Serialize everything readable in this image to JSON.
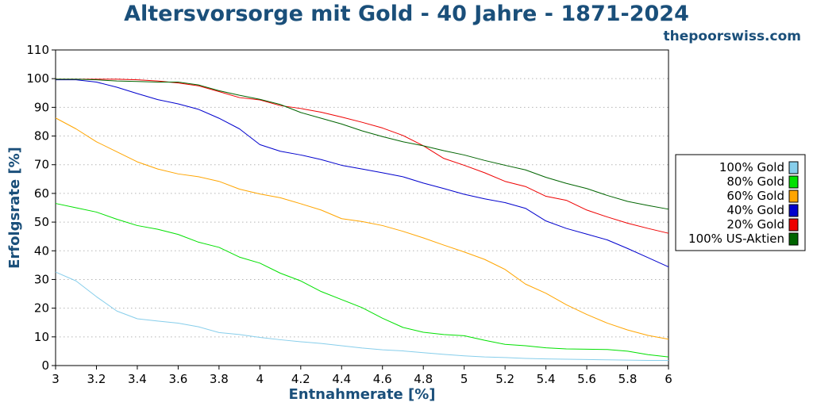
{
  "chart_data": {
    "type": "line",
    "title": "Altersvorsorge mit Gold - 40 Jahre - 1871-2024",
    "source_label": "thepoorswiss.com",
    "xlabel": "Entnahmerate [%]",
    "ylabel": "Erfolgsrate [%]",
    "xlim": [
      3,
      6
    ],
    "ylim": [
      0,
      110
    ],
    "xticks": [
      3,
      3.2,
      3.4,
      3.6,
      3.8,
      4,
      4.2,
      4.4,
      4.6,
      4.8,
      5,
      5.2,
      5.4,
      5.6,
      5.8,
      6
    ],
    "xtick_labels": [
      "3",
      "3.2",
      "3.4",
      "3.6",
      "3.8",
      "4",
      "4.2",
      "4.4",
      "4.6",
      "4.8",
      "5",
      "5.2",
      "5.4",
      "5.6",
      "5.8",
      "6"
    ],
    "yticks": [
      0,
      10,
      20,
      30,
      40,
      50,
      60,
      70,
      80,
      90,
      100,
      110
    ],
    "ytick_labels": [
      "0",
      "10",
      "20",
      "30",
      "40",
      "50",
      "60",
      "70",
      "80",
      "90",
      "100",
      "110"
    ],
    "grid": "horizontal-dotted",
    "legend_position": "right",
    "x": [
      3,
      3.1,
      3.2,
      3.3,
      3.4,
      3.5,
      3.6,
      3.7,
      3.8,
      3.9,
      4,
      4.1,
      4.2,
      4.3,
      4.4,
      4.5,
      4.6,
      4.7,
      4.8,
      4.9,
      5,
      5.1,
      5.2,
      5.3,
      5.4,
      5.5,
      5.6,
      5.7,
      5.8,
      5.9,
      6
    ],
    "series": [
      {
        "name": "100% Gold",
        "color": "#87ceeb",
        "values": [
          32.6,
          29.5,
          24,
          19,
          16.3,
          15.5,
          14.8,
          13.5,
          11.5,
          10.8,
          9.8,
          9,
          8.3,
          7.7,
          6.9,
          6.1,
          5.5,
          5.1,
          4.5,
          3.9,
          3.4,
          3,
          2.8,
          2.5,
          2.3,
          2.2,
          2.1,
          2,
          1.9,
          1.8,
          1.8
        ]
      },
      {
        "name": "80% Gold",
        "color": "#00e000",
        "values": [
          56.5,
          55,
          53.5,
          51,
          48.8,
          47.5,
          45.7,
          43,
          41.2,
          37.8,
          35.7,
          32.2,
          29.5,
          25.8,
          23,
          20.2,
          16.5,
          13.3,
          11.6,
          10.8,
          10.4,
          8.8,
          7.4,
          6.9,
          6.2,
          5.8,
          5.7,
          5.6,
          5,
          3.8,
          3
        ]
      },
      {
        "name": "60% Gold",
        "color": "#ffa500",
        "values": [
          86.3,
          82.5,
          78,
          74.5,
          71,
          68.5,
          66.8,
          65.8,
          64.2,
          61.5,
          59.8,
          58.5,
          56.4,
          54.2,
          51.2,
          50.2,
          48.8,
          46.8,
          44.5,
          42,
          39.6,
          37,
          33.5,
          28.4,
          25.2,
          21.2,
          17.8,
          14.8,
          12.4,
          10.5,
          9.2
        ]
      },
      {
        "name": "40% Gold",
        "color": "#0000cd",
        "values": [
          99.6,
          99.6,
          98.8,
          97,
          94.8,
          92.7,
          91.2,
          89.3,
          86.2,
          82.5,
          77,
          74.7,
          73.4,
          71.8,
          69.8,
          68.5,
          67.2,
          65.8,
          63.6,
          61.7,
          59.7,
          58.1,
          56.8,
          54.8,
          50.4,
          47.8,
          45.8,
          43.8,
          40.8,
          37.6,
          34.4
        ]
      },
      {
        "name": "20% Gold",
        "color": "#ee0000",
        "values": [
          99.8,
          99.8,
          99.8,
          99.8,
          99.6,
          99.2,
          98.5,
          97.5,
          95.5,
          93.4,
          92.6,
          90.6,
          89.6,
          88.3,
          86.6,
          84.8,
          82.8,
          80.2,
          76.6,
          72.2,
          69.8,
          67.2,
          64.2,
          62.4,
          59,
          57.6,
          54.2,
          51.8,
          49.6,
          47.8,
          46.1
        ]
      },
      {
        "name": "100% US-Aktien",
        "color": "#006400",
        "values": [
          99.8,
          99.8,
          99.6,
          99.2,
          99,
          98.8,
          98.8,
          97.8,
          95.8,
          94.2,
          92.8,
          91,
          88.2,
          86.2,
          84.2,
          81.8,
          79.8,
          78,
          76.6,
          74.9,
          73.4,
          71.5,
          69.8,
          68.2,
          65.6,
          63.5,
          61.7,
          59.3,
          57.2,
          55.8,
          54.5
        ]
      }
    ]
  }
}
